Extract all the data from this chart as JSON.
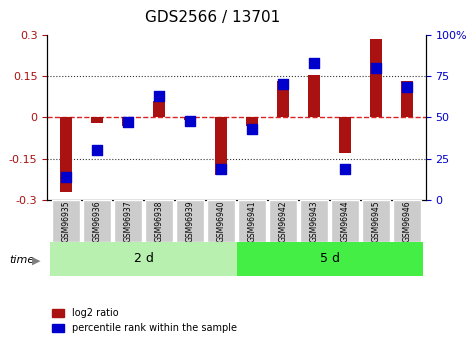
{
  "title": "GDS2566 / 13701",
  "categories": [
    "GSM96935",
    "GSM96936",
    "GSM96937",
    "GSM96938",
    "GSM96939",
    "GSM96940",
    "GSM96941",
    "GSM96942",
    "GSM96943",
    "GSM96944",
    "GSM96945",
    "GSM96946"
  ],
  "log2_ratio": [
    -0.27,
    -0.02,
    -0.03,
    0.06,
    -0.01,
    -0.21,
    -0.03,
    0.13,
    0.155,
    -0.13,
    0.285,
    0.13
  ],
  "percentile_rank": [
    14,
    30,
    47,
    63,
    48,
    19,
    43,
    70,
    83,
    19,
    80,
    68
  ],
  "group1_label": "2 d",
  "group2_label": "5 d",
  "group1_count": 6,
  "group2_count": 6,
  "ylim": [
    -0.3,
    0.3
  ],
  "yticks_left": [
    -0.3,
    -0.15,
    0.0,
    0.15,
    0.3
  ],
  "yticks_right": [
    0,
    25,
    50,
    75,
    100
  ],
  "bar_color": "#aa1111",
  "dot_color": "#0000cc",
  "group1_bg": "#b8f0b0",
  "group2_bg": "#44ee44",
  "sample_bg": "#cccccc",
  "hline_color": "#dd2222",
  "dotted_color": "#333333",
  "legend_bar_label": "log2 ratio",
  "legend_dot_label": "percentile rank within the sample",
  "time_label": "time",
  "background_color": "#ffffff"
}
